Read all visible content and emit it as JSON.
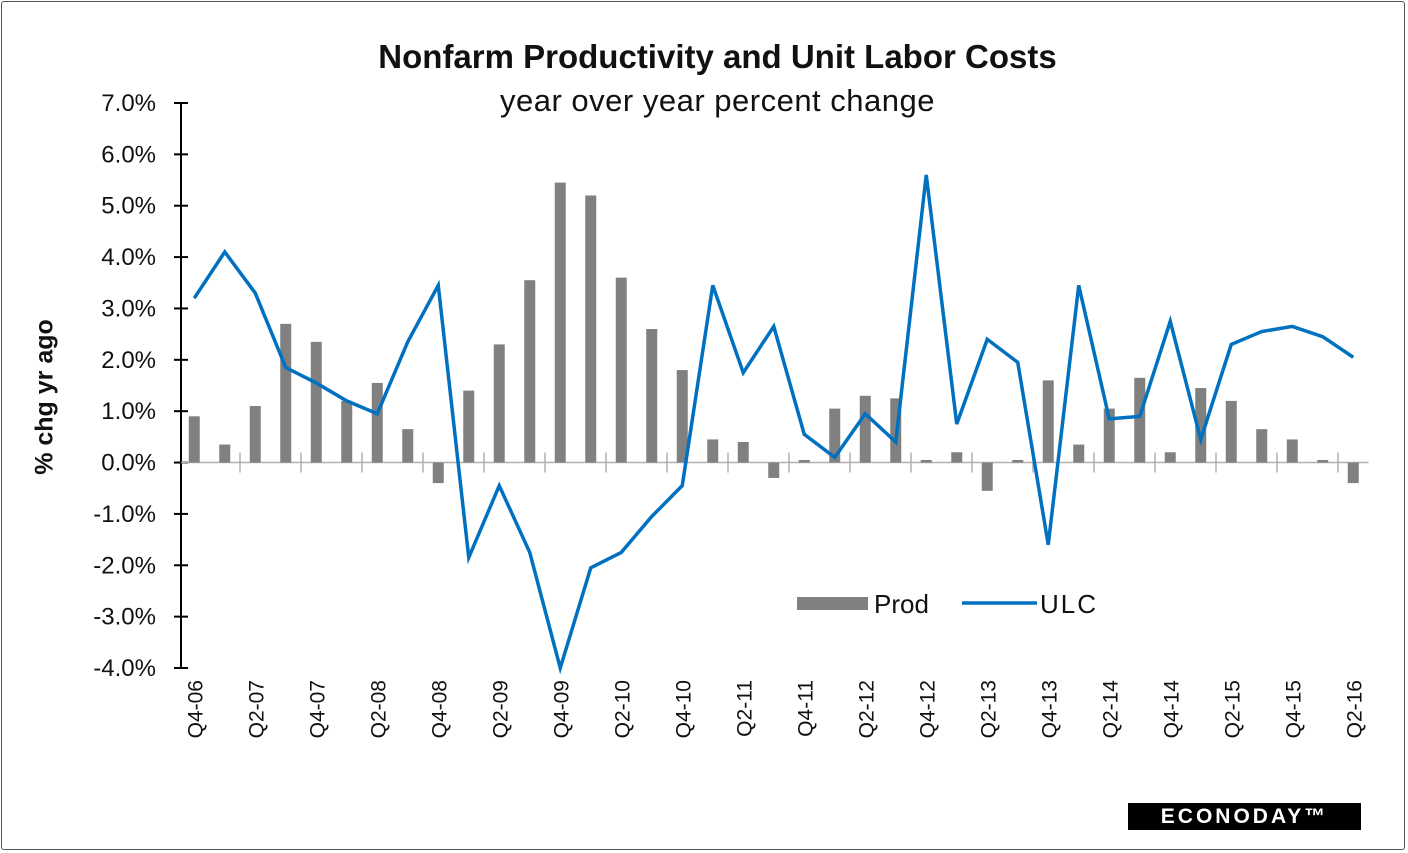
{
  "chart_data": {
    "type": "bar+line",
    "title": "Nonfarm Productivity and Unit Labor Costs",
    "subtitle": "year over year percent change",
    "ylabel": "% chg yr ago",
    "xlabel": "",
    "ylim": [
      -4,
      7
    ],
    "yticks": [
      "-4.0%",
      "-3.0%",
      "-2.0%",
      "-1.0%",
      "0.0%",
      "1.0%",
      "2.0%",
      "3.0%",
      "4.0%",
      "5.0%",
      "6.0%",
      "7.0%"
    ],
    "x": [
      "Q4-06",
      "Q1-07",
      "Q2-07",
      "Q3-07",
      "Q4-07",
      "Q1-08",
      "Q2-08",
      "Q3-08",
      "Q4-08",
      "Q1-09",
      "Q2-09",
      "Q3-09",
      "Q4-09",
      "Q1-10",
      "Q2-10",
      "Q3-10",
      "Q4-10",
      "Q1-11",
      "Q2-11",
      "Q3-11",
      "Q4-11",
      "Q1-12",
      "Q2-12",
      "Q3-12",
      "Q4-12",
      "Q1-13",
      "Q2-13",
      "Q3-13",
      "Q4-13",
      "Q1-14",
      "Q2-14",
      "Q3-14",
      "Q4-14",
      "Q1-15",
      "Q2-15",
      "Q3-15",
      "Q4-15",
      "Q1-16",
      "Q2-16"
    ],
    "xtick_labels": [
      "Q4-06",
      "Q2-07",
      "Q4-07",
      "Q2-08",
      "Q4-08",
      "Q2-09",
      "Q4-09",
      "Q2-10",
      "Q4-10",
      "Q2-11",
      "Q4-11",
      "Q2-12",
      "Q4-12",
      "Q2-13",
      "Q4-13",
      "Q2-14",
      "Q4-14",
      "Q2-15",
      "Q4-15",
      "Q2-16"
    ],
    "series": [
      {
        "name": "Prod",
        "type": "bar",
        "color": "#808080",
        "values": [
          0.9,
          0.35,
          1.1,
          2.7,
          2.35,
          1.2,
          1.55,
          0.65,
          -0.4,
          1.4,
          2.3,
          3.55,
          5.45,
          5.2,
          3.6,
          2.6,
          1.8,
          0.45,
          0.4,
          -0.3,
          0.05,
          1.05,
          1.3,
          1.25,
          0.05,
          0.2,
          -0.55,
          0.05,
          1.6,
          0.35,
          1.05,
          1.65,
          0.2,
          1.45,
          1.2,
          0.65,
          0.45,
          0.05,
          -0.4
        ]
      },
      {
        "name": "ULC",
        "type": "line",
        "color": "#0070c0",
        "values": [
          3.2,
          4.1,
          3.3,
          1.85,
          1.55,
          1.2,
          0.95,
          2.35,
          3.45,
          -1.85,
          -0.45,
          -1.75,
          -4.0,
          -2.05,
          -1.75,
          -1.05,
          -0.45,
          3.45,
          1.75,
          2.65,
          0.55,
          0.1,
          0.95,
          0.4,
          5.6,
          0.75,
          2.4,
          1.95,
          -1.6,
          3.45,
          0.85,
          0.9,
          2.75,
          0.45,
          2.3,
          2.55,
          2.65,
          2.45,
          2.05
        ]
      }
    ],
    "legend": "bottom-right inside",
    "grid": false
  },
  "logo": "ECONODAY™"
}
